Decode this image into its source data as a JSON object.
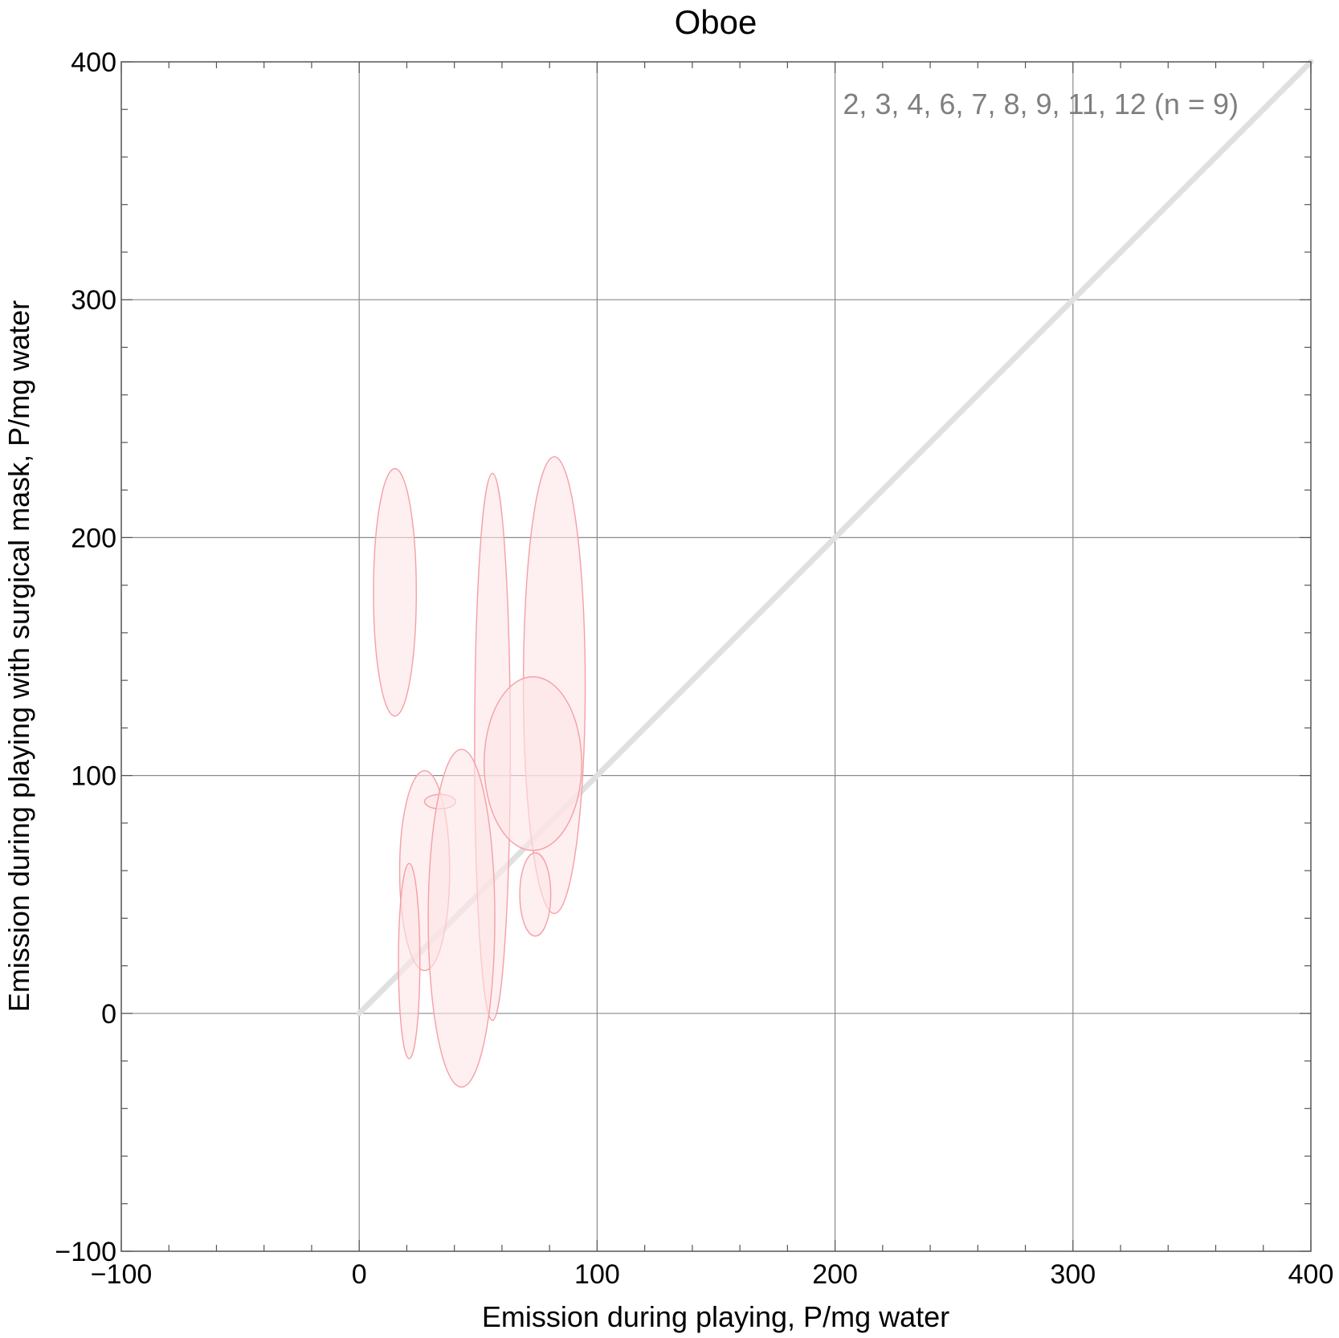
{
  "chart_data": {
    "type": "scatter",
    "title": "Oboe",
    "xlabel": "Emission during playing,   P/mg water",
    "ylabel": "Emission during playing with surgical mask,   P/mg water",
    "annotation": "2, 3, 4, 6, 7, 8, 9, 11, 12  (n = 9)",
    "xlim": [
      -100,
      400
    ],
    "ylim": [
      -100,
      400
    ],
    "x_ticks": [
      -100,
      0,
      100,
      200,
      300,
      400
    ],
    "y_ticks": [
      -100,
      0,
      100,
      200,
      300,
      400
    ],
    "x_tick_labels": [
      "−100",
      "0",
      "100",
      "200",
      "300",
      "400"
    ],
    "y_tick_labels": [
      "−100",
      "0",
      "100",
      "200",
      "300",
      "400"
    ],
    "grid": true,
    "reference_line": {
      "x": [
        0,
        400
      ],
      "y": [
        0,
        400
      ],
      "color": "#e0e0e0"
    },
    "ellipse_fill": "#fde4e6",
    "ellipse_stroke": "#f4a0a6",
    "ellipses": [
      {
        "cx": 15,
        "cy": 177,
        "rx": 9,
        "ry": 52
      },
      {
        "cx": 56,
        "cy": 112,
        "rx": 7.5,
        "ry": 115
      },
      {
        "cx": 82,
        "cy": 138,
        "rx": 13,
        "ry": 96
      },
      {
        "cx": 73,
        "cy": 105,
        "rx": 20.5,
        "ry": 36.5
      },
      {
        "cx": 27.5,
        "cy": 60,
        "rx": 10.5,
        "ry": 42
      },
      {
        "cx": 34,
        "cy": 89,
        "rx": 6.5,
        "ry": 3
      },
      {
        "cx": 43,
        "cy": 40,
        "rx": 14,
        "ry": 71
      },
      {
        "cx": 21,
        "cy": 22,
        "rx": 4.5,
        "ry": 41
      },
      {
        "cx": 74,
        "cy": 50,
        "rx": 6.5,
        "ry": 17.5
      }
    ]
  }
}
